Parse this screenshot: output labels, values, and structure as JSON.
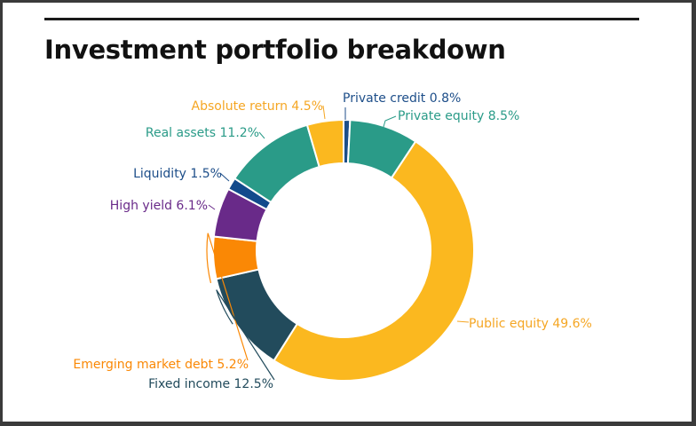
{
  "title": "Investment portfolio breakdown",
  "chart_data": {
    "type": "pie",
    "variant": "donut",
    "title": "Investment portfolio breakdown",
    "slices": [
      {
        "label": "Private credit",
        "value": 0.8,
        "text": "Private credit 0.8%",
        "color": "#1d4e89"
      },
      {
        "label": "Private equity",
        "value": 8.5,
        "text": "Private equity 8.5%",
        "color": "#2a9b88"
      },
      {
        "label": "Public equity",
        "value": 49.6,
        "text": "Public equity 49.6%",
        "color": "#fbb81f"
      },
      {
        "label": "Fixed income",
        "value": 12.5,
        "text": "Fixed income 12.5%",
        "color": "#224b5c"
      },
      {
        "label": "Emerging market debt",
        "value": 5.2,
        "text": "Emerging market debt 5.2%",
        "color": "#fa8805"
      },
      {
        "label": "High yield",
        "value": 6.1,
        "text": "High yield 6.1%",
        "color": "#692a89"
      },
      {
        "label": "Liquidity",
        "value": 1.5,
        "text": "Liquidity 1.5%",
        "color": "#124a8c"
      },
      {
        "label": "Real assets",
        "value": 11.2,
        "text": "Real assets 11.2%",
        "color": "#2a9b88"
      },
      {
        "label": "Absolute return",
        "value": 4.5,
        "text": "Absolute return 4.5%",
        "color": "#fbb81f"
      }
    ],
    "label_colors": {
      "Private credit": "#1d4e89",
      "Private equity": "#2a9b88",
      "Public equity": "#f5a623",
      "Fixed income": "#224b5c",
      "Emerging market debt": "#fa8805",
      "High yield": "#692a89",
      "Liquidity": "#1d4e89",
      "Real assets": "#2a9b88",
      "Absolute return": "#f5a623"
    }
  }
}
